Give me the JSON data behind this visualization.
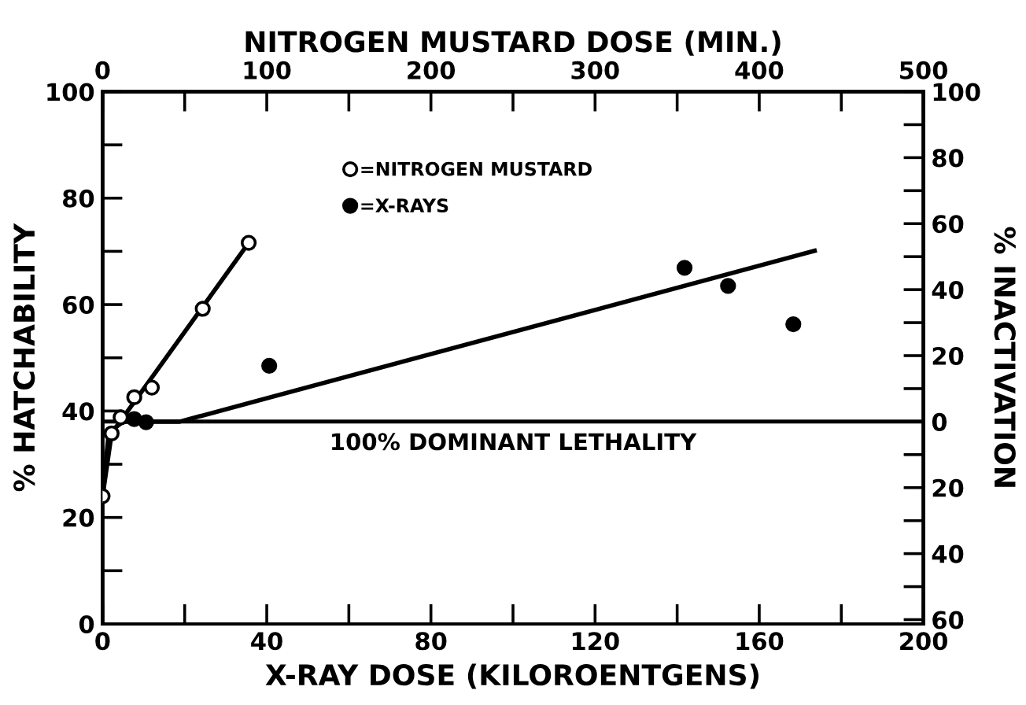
{
  "chart_data": {
    "type": "scatter",
    "xlabel": "X-RAY DOSE (KILOROENTGENS)",
    "x2label": "NITROGEN MUSTARD DOSE (MIN.)",
    "ylabel": "% HATCHABILITY",
    "y2label": "% INACTIVATION",
    "xlim": [
      0,
      200
    ],
    "xticks": [
      0,
      {
        "value": 20,
        "label": null
      },
      40,
      {
        "value": 60,
        "label": null
      },
      80,
      {
        "value": 100,
        "label": null
      },
      120,
      {
        "value": 140,
        "label": null
      },
      160,
      {
        "value": 180,
        "label": null
      },
      200
    ],
    "x2lim": [
      0,
      500
    ],
    "x2ticks": [
      0,
      {
        "value": 50,
        "label": null
      },
      100,
      {
        "value": 150,
        "label": null
      },
      200,
      {
        "value": 250,
        "label": null
      },
      300,
      {
        "value": 350,
        "label": null
      },
      400,
      {
        "value": 450,
        "label": null
      },
      500
    ],
    "ylim": [
      0,
      100
    ],
    "yticks": [
      0,
      {
        "value": 10,
        "label": null
      },
      20,
      {
        "value": 30,
        "label": null
      },
      40,
      {
        "value": 50,
        "label": null
      },
      60,
      {
        "value": 70,
        "label": null
      },
      80,
      {
        "value": 90,
        "label": null
      },
      100
    ],
    "y2lim": [
      -61.3,
      100
    ],
    "y2ticks": [
      {
        "value": -60,
        "label": "60"
      },
      {
        "value": -50,
        "label": null
      },
      {
        "value": -40,
        "label": "40"
      },
      {
        "value": -30,
        "label": null
      },
      {
        "value": -20,
        "label": "20"
      },
      {
        "value": -10,
        "label": null
      },
      0,
      {
        "value": 10,
        "label": null
      },
      20,
      {
        "value": 30,
        "label": null
      },
      40,
      {
        "value": 50,
        "label": null
      },
      60,
      {
        "value": 70,
        "label": null
      },
      80,
      {
        "value": 90,
        "label": null
      },
      100
    ],
    "series": [
      {
        "name": "=NITROGEN MUSTARD",
        "axis": "x2",
        "color": "#ffffff",
        "marker": "circle",
        "x": [
          0,
          5.5,
          11,
          19.3,
          30,
          61,
          89
        ],
        "values": [
          24,
          35.8,
          38.8,
          42.6,
          44.4,
          59.2,
          71.6
        ]
      },
      {
        "type": "line",
        "axis": "x2",
        "color": "#000000",
        "marker": "none",
        "x": [
          0,
          5.5,
          89
        ],
        "values": [
          24,
          35.8,
          71.6
        ]
      },
      {
        "name": "=X-RAYS",
        "color": "#000000",
        "marker": "circle",
        "x": [
          7.7,
          10.6,
          40.6,
          141.8,
          152.4,
          168.3
        ],
        "values": [
          38.5,
          37.9,
          48.5,
          66.9,
          63.5,
          56.3
        ]
      },
      {
        "type": "line",
        "color": "#000000",
        "marker": "none",
        "x": [
          0,
          1.5,
          5,
          18.8,
          173.5
        ],
        "values": [
          24,
          36,
          38,
          38,
          70.1
        ]
      }
    ],
    "ref_lines": [
      {
        "axis": "y2",
        "value": 0,
        "label": "100% DOMINANT LETHALITY",
        "color": "#000000",
        "line_style": "solid"
      }
    ],
    "legend": "top left",
    "grid": false
  }
}
